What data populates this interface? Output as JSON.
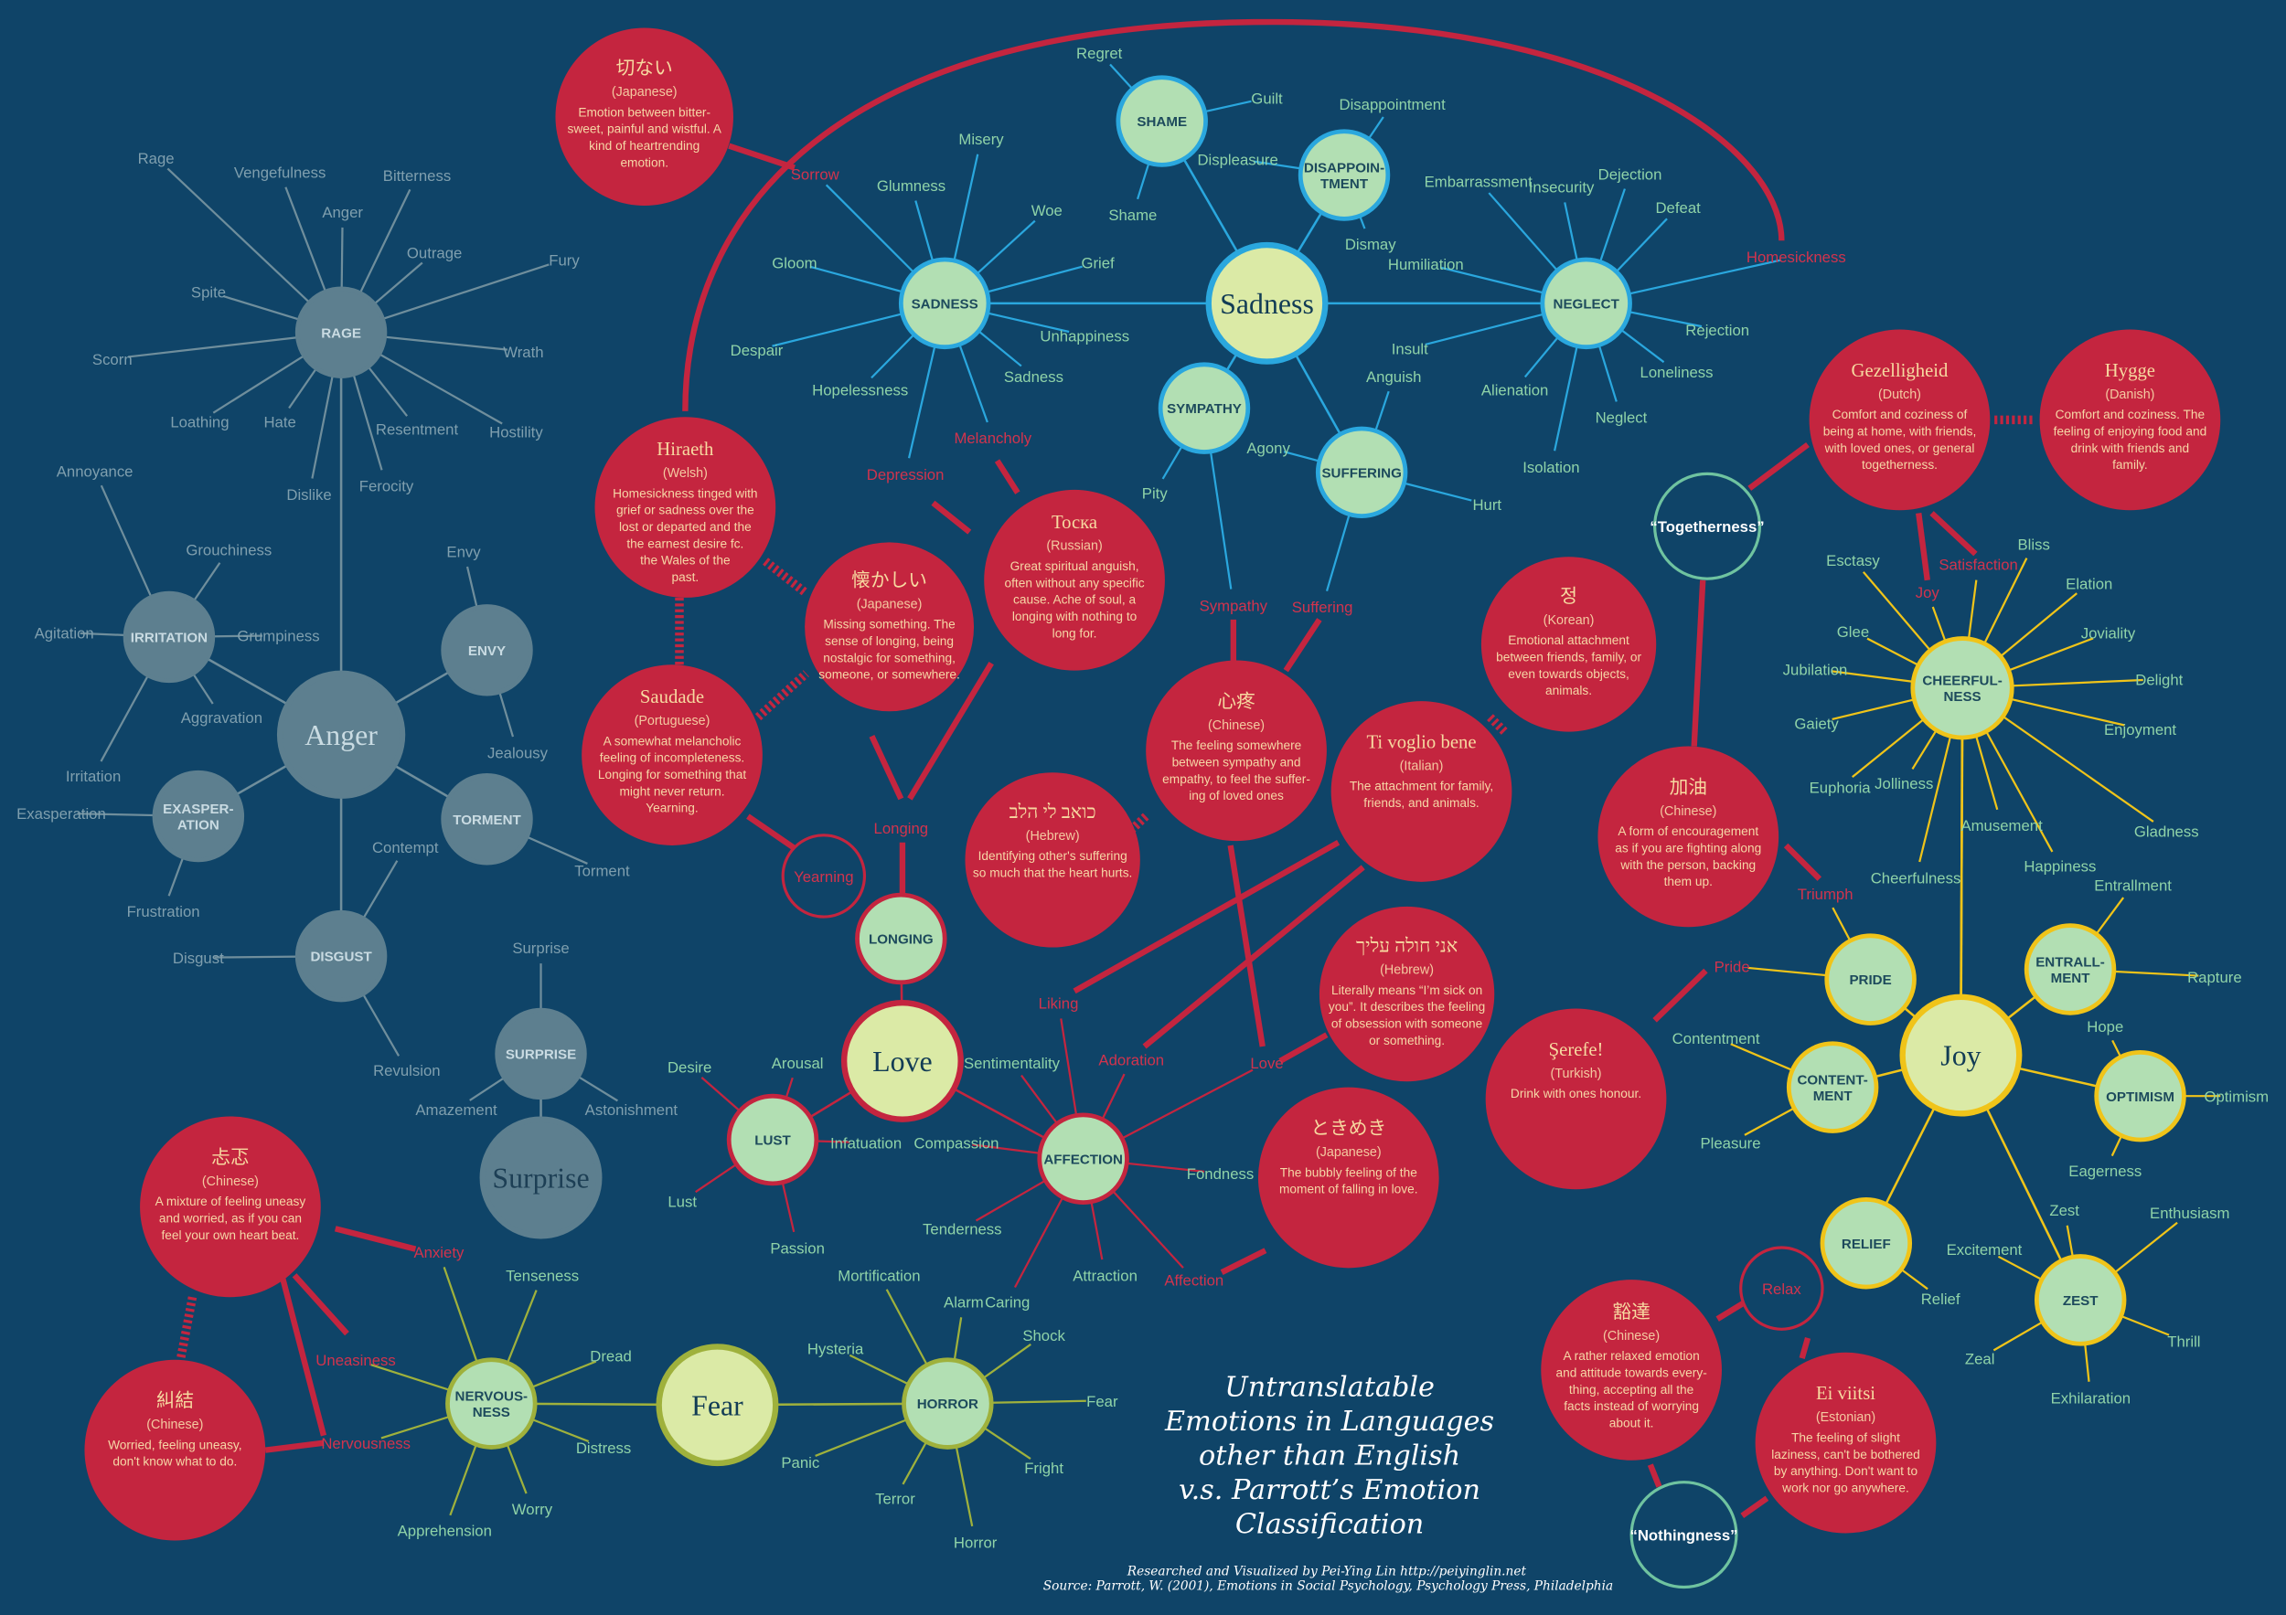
{
  "title_lines": [
    "Untranslatable",
    "Emotions in Languages",
    "other than English",
    "v.s. Parrott’s Emotion",
    "Classification"
  ],
  "credits": [
    "Researched and Visualized by Pei-Ying Lin http://peiyinglin.net",
    "Source: Parrott, W. (2001), Emotions in Social Psychology, Psychology Press, Philadelphia"
  ],
  "colors": {
    "background": "#0f4468",
    "anger": "#6f8e9c",
    "sadness": "#2aa7de",
    "love": "#c4253f",
    "joy": "#f0c419",
    "fear": "#9fb13c",
    "word_circle": "#c4253f"
  },
  "clusters": [
    {
      "id": "anger",
      "primary": "Anger",
      "secondaries": [
        {
          "id": "rage",
          "label": [
            "RAGE"
          ],
          "leaves": [
            {
              "t": "Rage"
            },
            {
              "t": "Vengefulness"
            },
            {
              "t": "Anger"
            },
            {
              "t": "Bitterness"
            },
            {
              "t": "Outrage"
            },
            {
              "t": "Fury"
            },
            {
              "t": "Spite"
            },
            {
              "t": "Scorn"
            },
            {
              "t": "Wrath"
            },
            {
              "t": "Loathing"
            },
            {
              "t": "Hate"
            },
            {
              "t": "Resentment"
            },
            {
              "t": "Hostility"
            },
            {
              "t": "Dislike"
            },
            {
              "t": "Ferocity"
            }
          ]
        },
        {
          "id": "irritation",
          "label": [
            "IRRITATION"
          ],
          "leaves": [
            {
              "t": "Annoyance"
            },
            {
              "t": "Grouchiness"
            },
            {
              "t": "Agitation"
            },
            {
              "t": "Grumpiness"
            },
            {
              "t": "Aggravation"
            },
            {
              "t": "Irritation"
            }
          ]
        },
        {
          "id": "envy",
          "label": [
            "ENVY"
          ],
          "leaves": [
            {
              "t": "Envy"
            },
            {
              "t": "Jealousy"
            }
          ]
        },
        {
          "id": "exasperation",
          "label": [
            "EXASPER-",
            "ATION"
          ],
          "leaves": [
            {
              "t": "Exasperation"
            },
            {
              "t": "Frustration"
            }
          ]
        },
        {
          "id": "torment",
          "label": [
            "TORMENT"
          ],
          "leaves": [
            {
              "t": "Torment"
            }
          ]
        },
        {
          "id": "disgust",
          "label": [
            "DISGUST"
          ],
          "leaves": [
            {
              "t": "Contempt"
            },
            {
              "t": "Disgust"
            },
            {
              "t": "Revulsion"
            }
          ]
        }
      ]
    },
    {
      "id": "surprise",
      "primary": "Surprise",
      "secondaries": [
        {
          "id": "surprise2",
          "label": [
            "SURPRISE"
          ],
          "leaves": [
            {
              "t": "Surprise"
            },
            {
              "t": "Amazement"
            },
            {
              "t": "Astonishment"
            }
          ]
        }
      ]
    },
    {
      "id": "sadness",
      "primary": "Sadness",
      "secondaries": [
        {
          "id": "sadness2",
          "label": [
            "SADNESS"
          ],
          "leaves": [
            {
              "t": "Sorrow",
              "hl": true
            },
            {
              "t": "Misery"
            },
            {
              "t": "Glumness"
            },
            {
              "t": "Woe"
            },
            {
              "t": "Gloom"
            },
            {
              "t": "Grief"
            },
            {
              "t": "Despair"
            },
            {
              "t": "Unhappiness"
            },
            {
              "t": "Hopelessness"
            },
            {
              "t": "Sadness"
            },
            {
              "t": "Depression",
              "hl": true
            },
            {
              "t": "Melancholy",
              "hl": true
            }
          ]
        },
        {
          "id": "shame",
          "label": [
            "SHAME"
          ],
          "leaves": [
            {
              "t": "Regret"
            },
            {
              "t": "Guilt"
            },
            {
              "t": "Shame"
            }
          ]
        },
        {
          "id": "disappointment",
          "label": [
            "DISAPPOIN-",
            "TMENT"
          ],
          "leaves": [
            {
              "t": "Disappointment"
            },
            {
              "t": "Displeasure"
            },
            {
              "t": "Dismay"
            }
          ]
        },
        {
          "id": "neglect",
          "label": [
            "NEGLECT"
          ],
          "leaves": [
            {
              "t": "Embarrassment"
            },
            {
              "t": "Insecurity"
            },
            {
              "t": "Dejection"
            },
            {
              "t": "Defeat"
            },
            {
              "t": "Homesickness",
              "hl": true
            },
            {
              "t": "Humiliation"
            },
            {
              "t": "Rejection"
            },
            {
              "t": "Insult"
            },
            {
              "t": "Loneliness"
            },
            {
              "t": "Alienation"
            },
            {
              "t": "Neglect"
            },
            {
              "t": "Isolation"
            }
          ]
        },
        {
          "id": "sympathy",
          "label": [
            "SYMPATHY"
          ],
          "leaves": [
            {
              "t": "Pity"
            },
            {
              "t": "Sympathy",
              "hl": true
            }
          ]
        },
        {
          "id": "suffering",
          "label": [
            "SUFFERING"
          ],
          "leaves": [
            {
              "t": "Anguish"
            },
            {
              "t": "Agony"
            },
            {
              "t": "Hurt"
            },
            {
              "t": "Suffering",
              "hl": true
            }
          ]
        }
      ]
    },
    {
      "id": "love",
      "primary": "Love",
      "secondaries": [
        {
          "id": "longing",
          "label": [
            "LONGING"
          ],
          "leaves": [
            {
              "t": "Longing",
              "hl": true
            }
          ]
        },
        {
          "id": "lust",
          "label": [
            "LUST"
          ],
          "leaves": [
            {
              "t": "Desire"
            },
            {
              "t": "Arousal"
            },
            {
              "t": "Infatuation"
            },
            {
              "t": "Lust"
            },
            {
              "t": "Passion"
            }
          ]
        },
        {
          "id": "affection",
          "label": [
            "AFFECTION"
          ],
          "leaves": [
            {
              "t": "Liking",
              "hl": true
            },
            {
              "t": "Adoration",
              "hl": true
            },
            {
              "t": "Love",
              "hl": true
            },
            {
              "t": "Sentimentality"
            },
            {
              "t": "Compassion"
            },
            {
              "t": "Fondness"
            },
            {
              "t": "Tenderness"
            },
            {
              "t": "Caring"
            },
            {
              "t": "Attraction"
            },
            {
              "t": "Affection",
              "hl": true
            }
          ]
        }
      ]
    },
    {
      "id": "joy",
      "primary": "Joy",
      "secondaries": [
        {
          "id": "cheerfulness",
          "label": [
            "CHEERFUL-",
            "NESS"
          ],
          "leaves": [
            {
              "t": "Esctasy"
            },
            {
              "t": "Joy",
              "hl": true
            },
            {
              "t": "Satisfaction",
              "hl": true
            },
            {
              "t": "Bliss"
            },
            {
              "t": "Elation"
            },
            {
              "t": "Joviality"
            },
            {
              "t": "Glee"
            },
            {
              "t": "Delight"
            },
            {
              "t": "Jubilation"
            },
            {
              "t": "Enjoyment"
            },
            {
              "t": "Gaiety"
            },
            {
              "t": "Euphoria"
            },
            {
              "t": "Jolliness"
            },
            {
              "t": "Amusement"
            },
            {
              "t": "Gladness"
            },
            {
              "t": "Cheerfulness"
            },
            {
              "t": "Happiness"
            }
          ]
        },
        {
          "id": "pride",
          "label": [
            "PRIDE"
          ],
          "leaves": [
            {
              "t": "Triumph",
              "hl": true
            },
            {
              "t": "Pride",
              "hl": true
            }
          ]
        },
        {
          "id": "entrallment",
          "label": [
            "ENTRALL-",
            "MENT"
          ],
          "leaves": [
            {
              "t": "Entrallment"
            },
            {
              "t": "Rapture"
            }
          ]
        },
        {
          "id": "contentment",
          "label": [
            "CONTENT-",
            "MENT"
          ],
          "leaves": [
            {
              "t": "Contentment"
            },
            {
              "t": "Pleasure"
            }
          ]
        },
        {
          "id": "optimism",
          "label": [
            "OPTIMISM"
          ],
          "leaves": [
            {
              "t": "Hope"
            },
            {
              "t": "Optimism"
            },
            {
              "t": "Eagerness"
            }
          ]
        },
        {
          "id": "relief",
          "label": [
            "RELIEF"
          ],
          "leaves": [
            {
              "t": "Relief"
            }
          ]
        },
        {
          "id": "zest",
          "label": [
            "ZEST"
          ],
          "leaves": [
            {
              "t": "Zest"
            },
            {
              "t": "Enthusiasm"
            },
            {
              "t": "Excitement"
            },
            {
              "t": "Thrill"
            },
            {
              "t": "Zeal"
            },
            {
              "t": "Exhilaration"
            }
          ]
        }
      ]
    },
    {
      "id": "fear",
      "primary": "Fear",
      "secondaries": [
        {
          "id": "nervousness",
          "label": [
            "NERVOUS-",
            "NESS"
          ],
          "leaves": [
            {
              "t": "Anxiety",
              "hl": true
            },
            {
              "t": "Tenseness"
            },
            {
              "t": "Uneasiness",
              "hl": true
            },
            {
              "t": "Dread"
            },
            {
              "t": "Nervousness",
              "hl": true
            },
            {
              "t": "Distress"
            },
            {
              "t": "Worry"
            },
            {
              "t": "Apprehension"
            }
          ]
        },
        {
          "id": "horror",
          "label": [
            "HORROR"
          ],
          "leaves": [
            {
              "t": "Mortification"
            },
            {
              "t": "Alarm"
            },
            {
              "t": "Shock"
            },
            {
              "t": "Hysteria"
            },
            {
              "t": "Fear"
            },
            {
              "t": "Panic"
            },
            {
              "t": "Fright"
            },
            {
              "t": "Terror"
            },
            {
              "t": "Horror"
            }
          ]
        }
      ]
    }
  ],
  "rings": [
    {
      "id": "yearning",
      "label": "Yearning"
    },
    {
      "id": "relax",
      "label": "Relax"
    },
    {
      "id": "togetherness",
      "label": "“Togetherness”"
    },
    {
      "id": "nothingness",
      "label": "“Nothingness”"
    }
  ],
  "words": [
    {
      "id": "setsunai",
      "word": "切ない",
      "language": "(Japanese)",
      "definition": [
        "Emotion between bitter-",
        "sweet, painful and wistful. A",
        "kind of heartrending",
        "emotion."
      ]
    },
    {
      "id": "hiraeth",
      "word": "Hiraeth",
      "language": "(Welsh)",
      "definition": [
        "Homesickness tinged with",
        "grief or sadness over the",
        "lost or departed and the",
        "the earnest desire fc.",
        "the Wales of the",
        "past."
      ]
    },
    {
      "id": "natsukashii",
      "word": "懐かしい",
      "language": "(Japanese)",
      "definition": [
        "Missing something. The",
        "sense of longing, being",
        "nostalgic for something,",
        "someone, or somewhere."
      ]
    },
    {
      "id": "toska",
      "word": "Тоска",
      "language": "(Russian)",
      "definition": [
        "Great spiritual anguish,",
        "often without any specific",
        "cause. Ache of soul, a",
        "longing with nothing to",
        "long for."
      ]
    },
    {
      "id": "saudade",
      "word": "Saudade",
      "language": "(Portuguese)",
      "definition": [
        "A somewhat melancholic",
        "feeling of incompleteness.",
        "Longing for something that",
        "might never return.",
        "Yearning."
      ]
    },
    {
      "id": "xinteng",
      "word": "心疼",
      "language": "(Chinese)",
      "definition": [
        "The feeling somewhere",
        "between sympathy and",
        "empathy, to feel the suffer-",
        "ing of loved ones"
      ]
    },
    {
      "id": "koev",
      "word": "כואב לי הלב",
      "language": "(Hebrew)",
      "definition": [
        "Identifying other's suffering",
        "so much that the heart hurts."
      ]
    },
    {
      "id": "tivoglio",
      "word": "Ti voglio bene",
      "language": "(Italian)",
      "definition": [
        "The attachment for family,",
        "friends, and animals."
      ]
    },
    {
      "id": "jeong",
      "word": "정",
      "language": "(Korean)",
      "definition": [
        "Emotional attachment",
        "between friends, family, or",
        "even towards objects,",
        "animals."
      ]
    },
    {
      "id": "jiayou",
      "word": "加油",
      "language": "(Chinese)",
      "definition": [
        "A form of encouragement",
        "as if you are fighting along",
        "with the person, backing",
        "them up."
      ]
    },
    {
      "id": "gezelligheid",
      "word": "Gezelligheid",
      "language": "(Dutch)",
      "definition": [
        "Comfort and coziness of",
        "being at home, with friends,",
        "with loved ones, or general",
        "togetherness."
      ]
    },
    {
      "id": "hygge",
      "word": "Hygge",
      "language": "(Danish)",
      "definition": [
        "Comfort and coziness. The",
        "feeling of enjoying food and",
        "drink with friends and",
        "family."
      ]
    },
    {
      "id": "aleicha",
      "word": "אני חולה עליך",
      "language": "(Hebrew)",
      "definition": [
        "Literally means “I’m sick on",
        "you”. It describes the feeling",
        "of obsession with someone",
        "or something."
      ]
    },
    {
      "id": "tokimeki",
      "word": "ときめき",
      "language": "(Japanese)",
      "definition": [
        "The bubbly feeling of the",
        "moment of falling in love."
      ]
    },
    {
      "id": "serefe",
      "word": "Şerefe!",
      "language": "(Turkish)",
      "definition": [
        "Drink with ones  honour."
      ]
    },
    {
      "id": "huoda",
      "word": "豁達",
      "language": "(Chinese)",
      "definition": [
        "A rather relaxed emotion",
        "and attitude towards every-",
        "thing, accepting all the",
        "facts instead of worrying",
        "about it."
      ]
    },
    {
      "id": "eiviitsi",
      "word": "Ei viitsi",
      "language": "(Estonian)",
      "definition": [
        "The feeling of slight",
        "laziness, can't be bothered",
        "by anything. Don't want to",
        "work nor go anywhere."
      ]
    },
    {
      "id": "tante",
      "word": "忐忑",
      "language": "(Chinese)",
      "definition": [
        "A mixture of feeling uneasy",
        "and worried, as if you can",
        "feel your own heart beat."
      ]
    },
    {
      "id": "jiujie",
      "word": "糾結",
      "language": "(Chinese)",
      "definition": [
        "Worried, feeling uneasy,",
        "don't know what to do."
      ]
    }
  ]
}
